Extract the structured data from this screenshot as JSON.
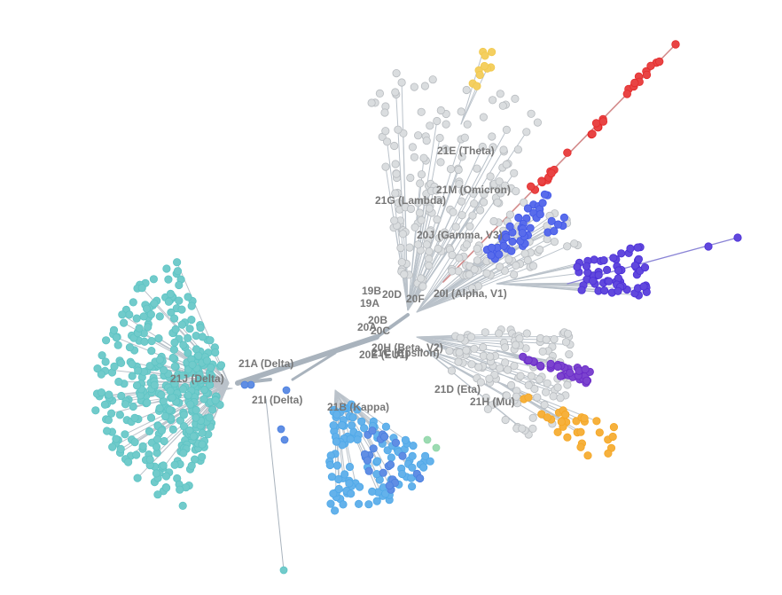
{
  "tree": {
    "clade_labels": [
      {
        "id": "21j",
        "text": "21J (Delta)"
      },
      {
        "id": "21a",
        "text": "21A (Delta)"
      },
      {
        "id": "21i",
        "text": "21I (Delta)"
      },
      {
        "id": "21b",
        "text": "21B (Kappa)"
      },
      {
        "id": "21e",
        "text": "21E (Theta)"
      },
      {
        "id": "21m",
        "text": "21M (Omicron)"
      },
      {
        "id": "21g",
        "text": "21G (Lambda)"
      },
      {
        "id": "20j",
        "text": "20J (Gamma, V3)"
      },
      {
        "id": "19b",
        "text": "19B"
      },
      {
        "id": "20d",
        "text": "20D"
      },
      {
        "id": "20f",
        "text": "20F"
      },
      {
        "id": "19a",
        "text": "19A"
      },
      {
        "id": "20i",
        "text": "20I (Alpha, V1)"
      },
      {
        "id": "20b",
        "text": "20B"
      },
      {
        "id": "20a",
        "text": "20A"
      },
      {
        "id": "20c",
        "text": "20C"
      },
      {
        "id": "20h",
        "text": "20H (Beta, V2)"
      },
      {
        "id": "20e",
        "text": "20E (EU1)"
      },
      {
        "id": "21c",
        "text": "21C (Epsilon)"
      },
      {
        "id": "21d",
        "text": "21D (Eta)"
      },
      {
        "id": "21h",
        "text": "21H (Mu)"
      }
    ],
    "colors": {
      "delta_21j": "#5ec4c4",
      "delta_21a": "#4a7fe0",
      "kappa_21b": "#4fa8e8",
      "theta_21e": "#f2c94c",
      "omicron_21m": "#e52b2b",
      "gamma_20j": "#4258e8",
      "alpha_20i": "#4b2fd8",
      "beta_20h": "#6a2bc8",
      "epsilon_21c": "#b8e070",
      "mu_21h": "#f5a623",
      "eta_21d": "#8fd6a8",
      "basal": "#d5d8db",
      "branch": "#a9b3bd"
    }
  }
}
